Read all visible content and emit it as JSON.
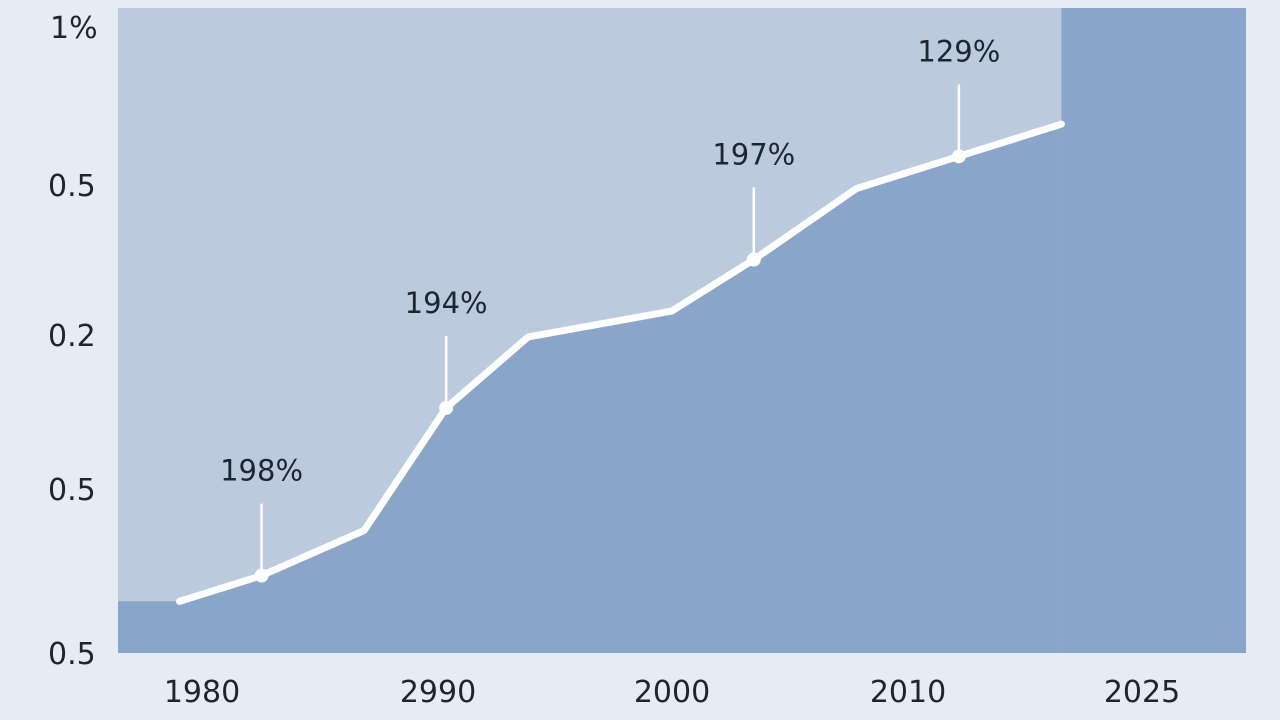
{
  "chart_data": {
    "type": "area",
    "title": "",
    "xlabel": "",
    "ylabel": "",
    "x_tick_labels": [
      "1980",
      "2990",
      "2000",
      "2010",
      "2025"
    ],
    "y_tick_labels": [
      "1%",
      "0.5",
      "0.2",
      "0.5",
      "0.5"
    ],
    "series": [
      {
        "x": [
          1978,
          1982,
          1987,
          1991,
          1995,
          2002,
          2006,
          2011,
          2016,
          2021
        ],
        "y": [
          0.08,
          0.12,
          0.19,
          0.38,
          0.49,
          0.53,
          0.61,
          0.72,
          0.77,
          0.82
        ]
      }
    ],
    "annotations": [
      {
        "label": "198%",
        "x": 1982
      },
      {
        "label": "194%",
        "x": 1991
      },
      {
        "label": "197%",
        "x": 2006
      },
      {
        "label": "129%",
        "x": 2016
      }
    ],
    "colors": {
      "page_background": "#e6ecf3",
      "plot_background": "#bccadd",
      "area_fill": "#89a5ca",
      "line": "#ffffff",
      "text": "#1f2530"
    },
    "grid": false,
    "legend": "none"
  }
}
